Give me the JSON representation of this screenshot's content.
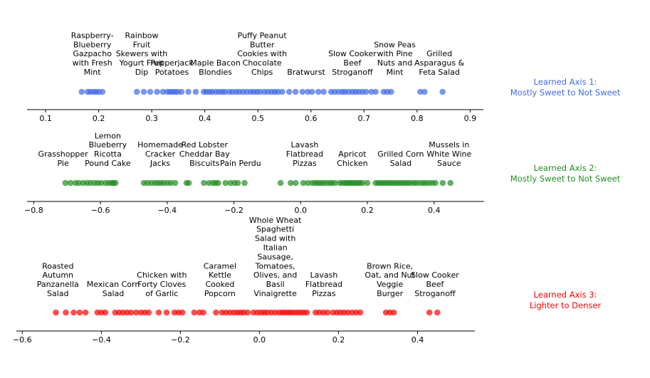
{
  "chart_data": [
    {
      "type": "scatter",
      "title": "Learned Axis 1:",
      "subtitle": "Mostly Sweet to Not Sweet",
      "color": "#4169e1",
      "xlim": [
        0.065,
        0.925
      ],
      "ticks": [
        0.1,
        0.2,
        0.3,
        0.4,
        0.5,
        0.6,
        0.7,
        0.8,
        0.9
      ],
      "tick_labels": [
        "0.1",
        "0.2",
        "0.3",
        "0.4",
        "0.5",
        "0.6",
        "0.7",
        "0.8",
        "0.9"
      ],
      "x": [
        0.168,
        0.179,
        0.184,
        0.19,
        0.195,
        0.2,
        0.207,
        0.272,
        0.285,
        0.297,
        0.31,
        0.321,
        0.329,
        0.334,
        0.339,
        0.344,
        0.349,
        0.356,
        0.369,
        0.383,
        0.398,
        0.403,
        0.409,
        0.414,
        0.421,
        0.427,
        0.433,
        0.438,
        0.446,
        0.452,
        0.459,
        0.465,
        0.472,
        0.479,
        0.486,
        0.492,
        0.498,
        0.504,
        0.512,
        0.519,
        0.526,
        0.532,
        0.538,
        0.546,
        0.559,
        0.571,
        0.584,
        0.594,
        0.602,
        0.614,
        0.624,
        0.638,
        0.645,
        0.652,
        0.659,
        0.664,
        0.671,
        0.678,
        0.684,
        0.69,
        0.697,
        0.704,
        0.714,
        0.722,
        0.737,
        0.744,
        0.751,
        0.806,
        0.814,
        0.848
      ],
      "annotations": [
        {
          "text": "Raspberry-\nBlueberry\nGazpacho\nwith Fresh\nMint",
          "x": 0.188
        },
        {
          "text": "Rainbow\nFruit\nSkewers with\nYogurt Fruit\nDip",
          "x": 0.281
        },
        {
          "text": "Pepperjack\nPotatoes",
          "x": 0.338
        },
        {
          "text": "Maple Bacon\nBlondies",
          "x": 0.42
        },
        {
          "text": "Puffy Peanut\nButter\nCookies with\nChocolate\nChips",
          "x": 0.508
        },
        {
          "text": "Bratwurst",
          "x": 0.591
        },
        {
          "text": "Slow Cooker\nBeef\nStroganoff",
          "x": 0.678
        },
        {
          "text": "Snow Peas\nwith Pine\nNuts and\nMint",
          "x": 0.758
        },
        {
          "text": "Grilled\nAsparagus &\nFeta Salad",
          "x": 0.842
        }
      ]
    },
    {
      "type": "scatter",
      "title": "Learned Axis 2:",
      "subtitle": "Mostly Sweet to Not Sweet",
      "color": "#228b22",
      "xlim": [
        -0.82,
        0.55
      ],
      "ticks": [
        -0.8,
        -0.6,
        -0.4,
        -0.2,
        0.0,
        0.2,
        0.4
      ],
      "tick_labels": [
        "−0.8",
        "−0.6",
        "−0.4",
        "−0.2",
        "0.0",
        "0.2",
        "0.4"
      ],
      "x": [
        -0.705,
        -0.69,
        -0.675,
        -0.665,
        -0.652,
        -0.64,
        -0.63,
        -0.618,
        -0.608,
        -0.598,
        -0.585,
        -0.575,
        -0.566,
        -0.561,
        -0.555,
        -0.47,
        -0.459,
        -0.448,
        -0.437,
        -0.428,
        -0.419,
        -0.41,
        -0.399,
        -0.389,
        -0.376,
        -0.342,
        -0.335,
        -0.29,
        -0.275,
        -0.263,
        -0.255,
        -0.247,
        -0.225,
        -0.21,
        -0.198,
        -0.188,
        -0.168,
        -0.06,
        -0.03,
        -0.015,
        0.008,
        0.022,
        0.035,
        0.044,
        0.052,
        0.06,
        0.068,
        0.077,
        0.087,
        0.094,
        0.104,
        0.118,
        0.126,
        0.134,
        0.14,
        0.146,
        0.152,
        0.158,
        0.165,
        0.172,
        0.178,
        0.186,
        0.2,
        0.225,
        0.233,
        0.24,
        0.248,
        0.256,
        0.264,
        0.272,
        0.28,
        0.288,
        0.296,
        0.304,
        0.312,
        0.32,
        0.328,
        0.338,
        0.346,
        0.356,
        0.366,
        0.374,
        0.384,
        0.394,
        0.404,
        0.426,
        0.449
      ],
      "annotations": [
        {
          "text": "Grasshopper\nPie",
          "x": -0.712
        },
        {
          "text": "Lemon\nBlueberry\nRicotta\nPound Cake",
          "x": -0.578
        },
        {
          "text": "Homemade\nCracker\nJacks",
          "x": -0.421
        },
        {
          "text": "Red Lobster\nCheddar Bay\nBiscuits",
          "x": -0.288
        },
        {
          "text": "Pain Perdu",
          "x": -0.18
        },
        {
          "text": "Lavash\nFlatbread\nPizzas",
          "x": 0.012
        },
        {
          "text": "Apricot\nChicken",
          "x": 0.155
        },
        {
          "text": "Grilled Corn\nSalad",
          "x": 0.3
        },
        {
          "text": "Mussels in\nWhite Wine\nSauce",
          "x": 0.445
        }
      ]
    },
    {
      "type": "scatter",
      "title": "Learned Axis 3:",
      "subtitle": "Lighter to Denser",
      "color": "#ff0000",
      "xlim": [
        -0.615,
        0.545
      ],
      "ticks": [
        -0.6,
        -0.4,
        -0.2,
        0.0,
        0.2,
        0.4
      ],
      "tick_labels": [
        "−0.6",
        "−0.4",
        "−0.2",
        "0.0",
        "0.2",
        "0.4"
      ],
      "x": [
        -0.515,
        -0.49,
        -0.47,
        -0.455,
        -0.44,
        -0.41,
        -0.4,
        -0.39,
        -0.365,
        -0.355,
        -0.345,
        -0.335,
        -0.325,
        -0.312,
        -0.3,
        -0.29,
        -0.28,
        -0.255,
        -0.235,
        -0.215,
        -0.205,
        -0.195,
        -0.165,
        -0.152,
        -0.142,
        -0.11,
        -0.095,
        -0.085,
        -0.075,
        -0.065,
        -0.056,
        -0.048,
        -0.04,
        -0.03,
        -0.015,
        -0.005,
        0.004,
        0.012,
        0.02,
        0.03,
        0.04,
        0.05,
        0.058,
        0.065,
        0.073,
        0.08,
        0.088,
        0.096,
        0.104,
        0.112,
        0.12,
        0.142,
        0.152,
        0.162,
        0.172,
        0.186,
        0.196,
        0.205,
        0.214,
        0.224,
        0.235,
        0.245,
        0.255,
        0.32,
        0.33,
        0.34,
        0.43,
        0.45
      ],
      "annotations": [
        {
          "text": "Roasted\nAutumn\nPanzanella\nSalad",
          "x": -0.51
        },
        {
          "text": "Mexican Corn\nSalad",
          "x": -0.37
        },
        {
          "text": "Chicken with\nForty Cloves\nof Garlic",
          "x": -0.247
        },
        {
          "text": "Caramel\nKettle\nCooked\nPopcorn",
          "x": -0.1
        },
        {
          "text": "Whole Wheat\nSpaghetti\nSalad with\nItalian\nSausage,\nTomatoes,\nOlives, and\nBasil\nVinaigrette",
          "x": 0.04
        },
        {
          "text": "Lavash\nFlatbread\nPizzas",
          "x": 0.163
        },
        {
          "text": "Brown Rice,\nOat, and Nut\nVeggie\nBurger",
          "x": 0.33
        },
        {
          "text": "Slow Cooker\nBeef\nStroganoff",
          "x": 0.444
        }
      ]
    }
  ]
}
